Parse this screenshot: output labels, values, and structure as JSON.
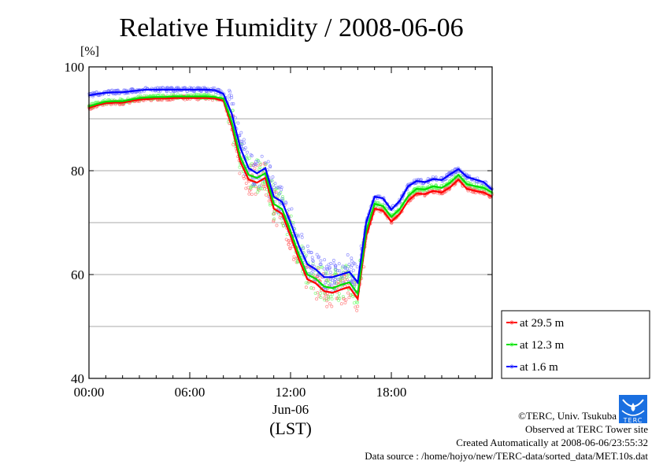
{
  "chart_data": {
    "type": "line",
    "title": "Relative Humidity / 2008-06-06",
    "ylabel": "[%]",
    "xlabel": "(LST)",
    "x_date_label": "Jun-06",
    "ylim": [
      40,
      100
    ],
    "xlim_hours": [
      0,
      24
    ],
    "y_ticks": [
      "40",
      "60",
      "80",
      "100"
    ],
    "y_grid_step": 10,
    "x_ticks": [
      {
        "hour": 0,
        "label": "00:00"
      },
      {
        "hour": 6,
        "label": "06:00"
      },
      {
        "hour": 12,
        "label": "12:00"
      },
      {
        "hour": 18,
        "label": "18:00"
      }
    ],
    "grid": true,
    "legend_position": "right-bottom-outside",
    "x_hours": [
      0,
      0.5,
      1,
      1.5,
      2,
      2.5,
      3,
      3.5,
      4,
      4.5,
      5,
      5.5,
      6,
      6.5,
      7,
      7.5,
      8,
      8.5,
      9,
      9.5,
      10,
      10.5,
      11,
      11.5,
      12,
      12.5,
      13,
      13.5,
      14,
      14.5,
      15,
      15.5,
      16,
      16.5,
      17,
      17.5,
      18,
      18.5,
      19,
      19.5,
      20,
      20.5,
      21,
      21.5,
      22,
      22.5,
      23,
      23.5,
      24
    ],
    "series": [
      {
        "name": "at 29.5 m",
        "color": "#ff0000",
        "scatter_color": "#ff6666",
        "values": [
          92.1,
          92.6,
          93.0,
          93.1,
          93.1,
          93.4,
          93.7,
          93.8,
          93.9,
          93.9,
          94.0,
          94.0,
          94.0,
          94.0,
          94.0,
          93.9,
          93.5,
          88.6,
          81.8,
          78.3,
          77.7,
          78.6,
          72.7,
          71.7,
          67.4,
          62.9,
          59.1,
          58.3,
          56.8,
          56.5,
          57.1,
          57.6,
          55.3,
          67.4,
          72.7,
          72.3,
          70.2,
          71.7,
          74.2,
          75.6,
          75.5,
          76.1,
          75.8,
          76.8,
          78.3,
          76.5,
          76.1,
          75.8,
          75.0
        ]
      },
      {
        "name": "at 12.3 m",
        "color": "#00dd00",
        "scatter_color": "#66ff66",
        "values": [
          92.4,
          92.9,
          93.3,
          93.4,
          93.4,
          93.7,
          94.0,
          94.1,
          94.2,
          94.2,
          94.3,
          94.3,
          94.3,
          94.3,
          94.3,
          94.2,
          93.9,
          89.4,
          82.7,
          79.2,
          78.6,
          79.5,
          73.6,
          72.6,
          68.3,
          63.8,
          60.0,
          59.2,
          57.7,
          57.4,
          58.0,
          58.5,
          56.3,
          68.3,
          73.6,
          73.2,
          71.1,
          72.6,
          75.1,
          76.5,
          76.4,
          77.0,
          76.7,
          77.7,
          79.2,
          77.4,
          77.0,
          76.7,
          75.8
        ]
      },
      {
        "name": "at 1.6 m",
        "color": "#0000ff",
        "scatter_color": "#7777ff",
        "values": [
          94.5,
          94.8,
          95.0,
          95.1,
          95.1,
          95.3,
          95.5,
          95.6,
          95.6,
          95.6,
          95.6,
          95.6,
          95.6,
          95.6,
          95.6,
          95.5,
          94.8,
          91.0,
          84.5,
          80.5,
          79.5,
          80.5,
          75.0,
          74.0,
          70.0,
          65.5,
          62.0,
          61.0,
          59.5,
          59.5,
          60.0,
          60.5,
          58.5,
          70.0,
          75.0,
          74.7,
          72.5,
          74.2,
          77.0,
          78.0,
          77.8,
          78.4,
          78.2,
          79.3,
          80.3,
          78.8,
          78.3,
          77.8,
          76.3
        ]
      }
    ]
  },
  "footer": {
    "copyright": "©TERC, Univ. Tsukuba",
    "observed": "Observed at TERC Tower site",
    "created": "Created Automatically at 2008-06-06/23:55:32",
    "source": "Data source : /home/hojyo/new/TERC-data/sorted_data/MET.10s.dat",
    "logo_text": "TERC",
    "logo_color": "#1a6fe0"
  }
}
